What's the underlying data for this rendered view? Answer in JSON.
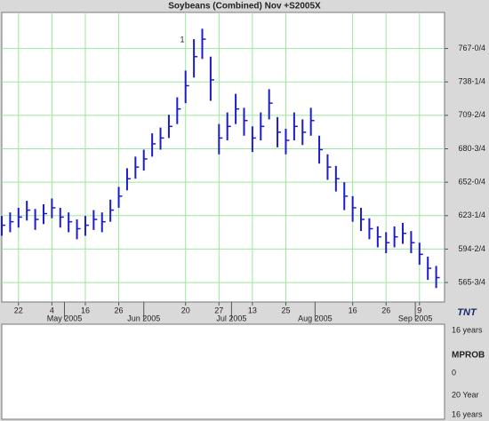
{
  "chart_data": {
    "type": "hlc",
    "title": "Soybeans (Combined) Nov +S2005X",
    "x": [
      0,
      2,
      4,
      6,
      8,
      10,
      12,
      14,
      16,
      18,
      20,
      22,
      24,
      26,
      28,
      30,
      32,
      34,
      36,
      38,
      40,
      42,
      44,
      46,
      48,
      50,
      52,
      54,
      56,
      58,
      60,
      62,
      64,
      66,
      68,
      70,
      72,
      74,
      76,
      78,
      80,
      82,
      84,
      86,
      88,
      90,
      92,
      94,
      96,
      98,
      100,
      102,
      104
    ],
    "high": [
      623,
      626,
      630,
      636,
      629,
      633,
      638,
      630,
      626,
      620,
      623,
      628,
      626,
      637,
      648,
      664,
      674,
      680,
      694,
      699,
      710,
      725,
      748,
      775,
      784,
      760,
      702,
      712,
      728,
      716,
      700,
      712,
      732,
      708,
      698,
      712,
      706,
      716,
      692,
      676,
      666,
      652,
      640,
      630,
      621,
      614,
      609,
      614,
      617,
      610,
      600,
      588,
      580
    ],
    "low": [
      606,
      609,
      613,
      619,
      611,
      616,
      621,
      613,
      609,
      603,
      606,
      611,
      609,
      618,
      630,
      645,
      655,
      662,
      674,
      680,
      690,
      702,
      720,
      742,
      758,
      722,
      676,
      688,
      702,
      692,
      678,
      688,
      706,
      682,
      676,
      688,
      684,
      692,
      668,
      654,
      644,
      628,
      618,
      610,
      603,
      596,
      591,
      596,
      599,
      591,
      581,
      568,
      561
    ],
    "close": [
      615,
      618,
      622,
      628,
      620,
      625,
      630,
      622,
      618,
      612,
      615,
      620,
      618,
      628,
      640,
      655,
      665,
      672,
      685,
      690,
      700,
      715,
      735,
      760,
      775,
      740,
      690,
      700,
      715,
      705,
      690,
      700,
      720,
      695,
      688,
      700,
      695,
      705,
      680,
      665,
      655,
      640,
      630,
      620,
      612,
      605,
      600,
      605,
      608,
      600,
      590,
      578,
      570
    ],
    "color": "#1c1ccc",
    "xlim": [
      0,
      106
    ],
    "xticks": [
      {
        "value": 4,
        "label": "22"
      },
      {
        "value": 12,
        "label": "4"
      },
      {
        "value": 20,
        "label": "16"
      },
      {
        "value": 28,
        "label": "26"
      },
      {
        "value": 44,
        "label": "20"
      },
      {
        "value": 52,
        "label": "27"
      },
      {
        "value": 60,
        "label": "13"
      },
      {
        "value": 68,
        "label": "25"
      },
      {
        "value": 84,
        "label": "16"
      },
      {
        "value": 92,
        "label": "26"
      },
      {
        "value": 100,
        "label": "9"
      }
    ],
    "month_ticks": [
      {
        "value": 15,
        "label": "May 2005"
      },
      {
        "value": 34,
        "label": "Jun 2005"
      },
      {
        "value": 55,
        "label": "Jul 2005"
      },
      {
        "value": 75,
        "label": "Aug 2005"
      },
      {
        "value": 99,
        "label": "Sep 2005"
      }
    ],
    "ylim": [
      549,
      798
    ],
    "yticks": [
      {
        "value": 767,
        "label": "767-0/4"
      },
      {
        "value": 738.25,
        "label": "738-1/4"
      },
      {
        "value": 709.5,
        "label": "709-2/4"
      },
      {
        "value": 680.75,
        "label": "680-3/4"
      },
      {
        "value": 652,
        "label": "652-0/4"
      },
      {
        "value": 623.25,
        "label": "623-1/4"
      },
      {
        "value": 594.5,
        "label": "594-2/4"
      },
      {
        "value": 565.75,
        "label": "565-3/4"
      }
    ],
    "grid": true,
    "annotation": "1",
    "logo": "TNT",
    "lower_panel": {
      "top_label": "16 years",
      "name": "MPROB",
      "zero_label": "0",
      "mid_label": "20 Year",
      "bottom_label": "16 years"
    }
  }
}
